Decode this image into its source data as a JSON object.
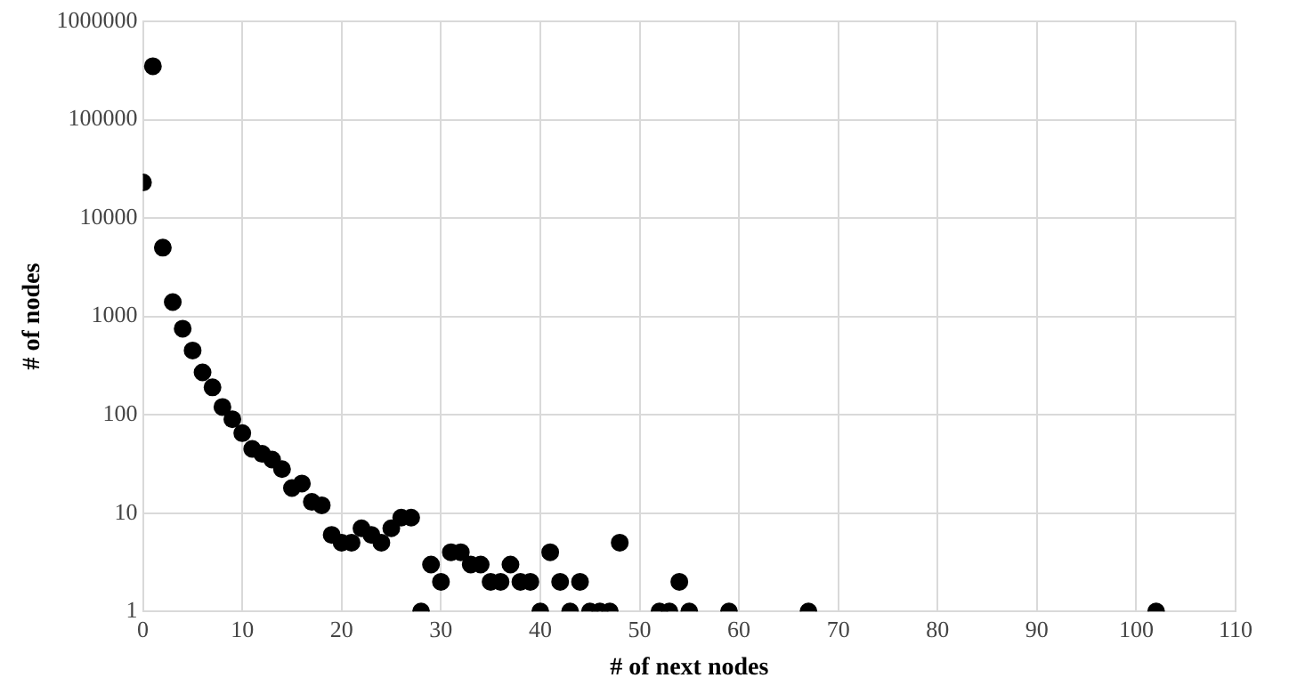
{
  "chart_data": {
    "type": "scatter",
    "xlabel": "# of next nodes",
    "ylabel": "# of nodes",
    "log": "y",
    "grid": true,
    "legend": false,
    "marker": "circle",
    "xlim": [
      0,
      110
    ],
    "xticks": [
      0,
      10,
      20,
      30,
      40,
      50,
      60,
      70,
      80,
      90,
      100,
      110
    ],
    "ylim": [
      1,
      1000000
    ],
    "yticks": [
      1,
      10,
      100,
      1000,
      10000,
      100000,
      1000000
    ],
    "series": [
      {
        "color": "#000000",
        "x": [
          0,
          1,
          2,
          3,
          4,
          5,
          6,
          7,
          8,
          9,
          10,
          11,
          12,
          13,
          14,
          15,
          16,
          17,
          18,
          19,
          20,
          21,
          22,
          23,
          24,
          25,
          26,
          27,
          28,
          29,
          30,
          31,
          32,
          33,
          34,
          35,
          36,
          37,
          38,
          39,
          40,
          41,
          42,
          43,
          44,
          45,
          46,
          47,
          48,
          52,
          53,
          54,
          55,
          59,
          67,
          102
        ],
        "values": [
          23000,
          350000,
          5000,
          1400,
          750,
          450,
          270,
          190,
          120,
          90,
          65,
          45,
          40,
          35,
          28,
          18,
          20,
          13,
          12,
          6,
          5,
          5,
          7,
          6,
          5,
          7,
          9,
          9,
          1,
          3,
          2,
          4,
          4,
          3,
          3,
          2,
          2,
          3,
          2,
          2,
          1,
          4,
          2,
          1,
          2,
          1,
          1,
          1,
          5,
          1,
          1,
          2,
          1,
          1,
          1,
          1
        ]
      }
    ]
  }
}
